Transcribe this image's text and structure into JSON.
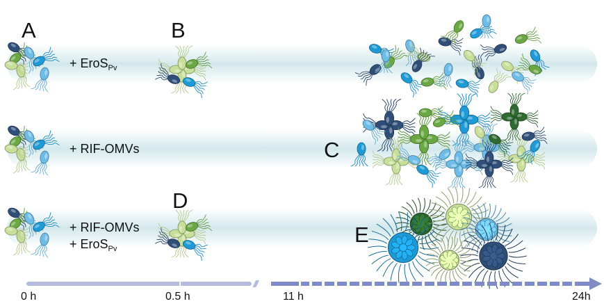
{
  "panels": {
    "a": "A",
    "b": "B",
    "c": "C",
    "d": "D",
    "e": "E"
  },
  "treatments": {
    "row1": {
      "prefix": "+ EroS",
      "sub": "Pv"
    },
    "row2": {
      "text": "+ RIF-OMVs"
    },
    "row3": {
      "line1": "+ RIF-OMVs",
      "prefix": "+ EroS",
      "sub": "Pv"
    }
  },
  "timeline": {
    "ticks": [
      "0 h",
      "0.5 h",
      "11 h",
      "24h"
    ]
  },
  "colors": {
    "band": "#d3e8ec",
    "axis_light": "#b4bde0",
    "axis_dark": "#7f8bc4",
    "navy": "#2f4e78",
    "blue": "#1e9ad6",
    "sky": "#6dbde8",
    "green": "#6aa843",
    "lightgreen": "#c8df9a",
    "darkgreen": "#2f6a30"
  }
}
